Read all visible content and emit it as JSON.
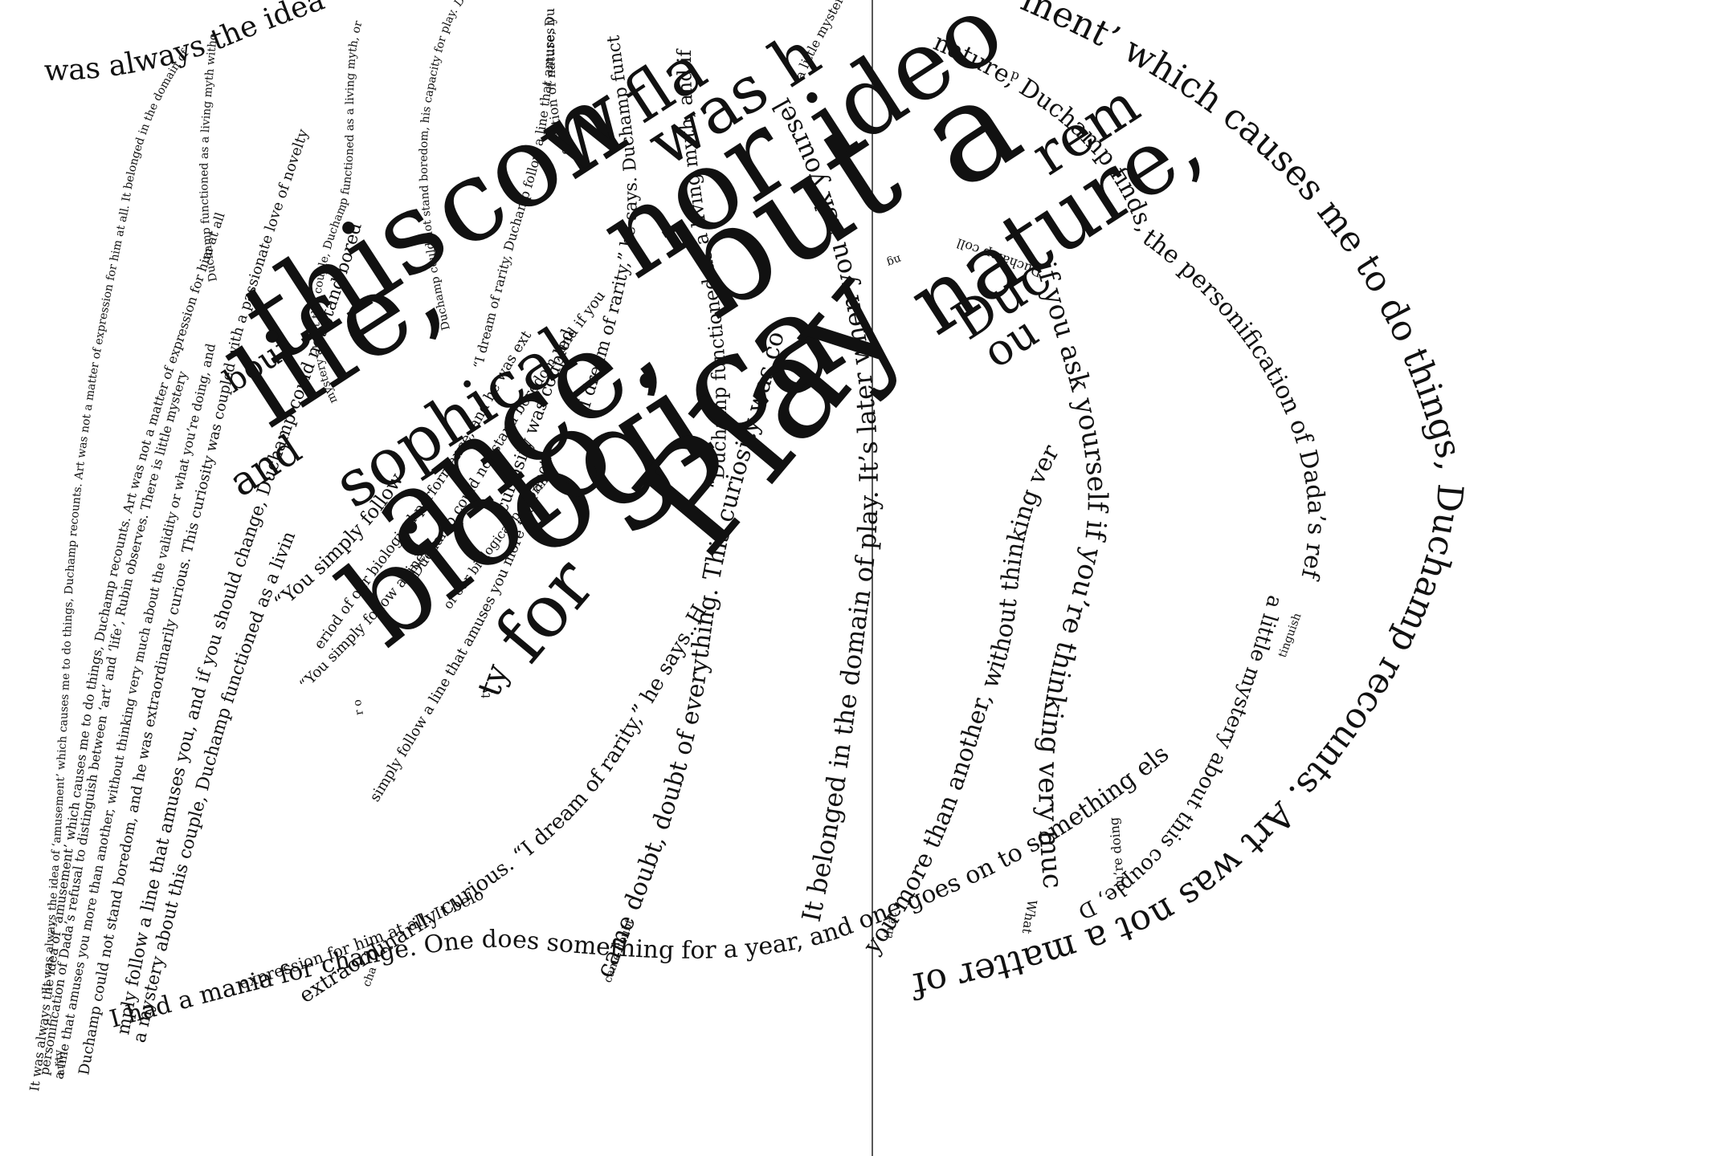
{
  "page": {
    "background": "#ffffff",
    "ink": "#111111"
  },
  "large_words": {
    "this": "this",
    "con": "con",
    "w": "w",
    "fla": "fla",
    "wash": "was h",
    "life": "life,",
    "nor": "nor",
    "ideo": "ideo",
    "but": "but",
    "a": "a",
    "sophical": "sophical",
    "ance": "ance,",
    "ogica": "ogica",
    "nature": "nature,",
    "rem": "rem",
    "biolo": "biolo",
    "for": "for",
    "play": "Play",
    "and": "and",
    "bout": "bout",
    "ty": "ty",
    "duc": "Duc",
    "ou": "ou"
  },
  "curves": {
    "c_right_outer": "ment’ which causes me to do things, Duchamp recounts. Art was not a matter of",
    "c_right_mid": "nature, Duchamp finds, the personification of Dada’s refusal to distinguish between ‘art’ and ‘life’, Rubin observes. “It w",
    "c_right_spine": "if you ask yourself if you’re thinking very much about the validity or what you’re doing",
    "c_right_tail": "a little mystery about this couple, Duchamp functioned as a living myth, the personification of",
    "c_bottom": "I had a mania for change. One does something for a year, and one goes on to something else. “Duchamp functioned as a living myth,",
    "c_bottom2": "expression for him at all. It belonged in the domain of play. Art was not a matter of expression for him at all.",
    "c_mid1": "came doubt, doubt of everything. This curiosity was coupled with a passionate love of novelty, dream of rarity",
    "c_mid2": "you more than another, without thinking very much about the validity of what you’re doing. It’s later when you ask yourself",
    "c_mid3": "It belonged in the domain of play. It’s later when you ask yourself if you’re right or wrong, and if you follow a",
    "c_mid4": "extraordinarily curious. “I dream of rarity,” he says. His Dada was neither a philosophical nor ideological performance",
    "c_left1": "It was always the idea of ‘amusement’ which causes me to do things, Duchamp recounts. Art was not a matter of expression for him at all",
    "c_left2": "personification of Dada’s refusal to distinguish between ‘art’ and ‘life’, Rubin observes. There is little mystery",
    "c_left3": "a line that amuses you more than another, without thinking very much about the validity or what you’re doing, and",
    "c_left4": "Duchamp could not stand boredom, and he was extraordinarily curious. This curiosity was coupled with a passionate love of novelty",
    "c_left5": "It was always the idea of ‘amusement’ which causes me to do things, Duchamp recounts. Art was not a matter of expression for him at all. It belonged in the domain of play. “You s",
    "c_left6": "mply follow a line that amuses you, and if you should change, Duchamp could not stand boredom, and he was extraordinarily curious. “I dream",
    "c_left7": "a mystery about this couple, Duchamp functioned as a living myth, the personification of Dada’s refusal",
    "c_top1": "was always the idea of amusement which causes me to do things",
    "c_topstrand1": "Duchamp functioned as a living myth without thinking very much about the validity of",
    "c_topstrand2": "mystery about this couple, Duchamp functioned as a living myth, or what you’re doing. Duchamp",
    "c_topstrand3": "Duchamp could not stand boredom, his capacity for play. Duc",
    "c_topstrand4": "“I dream of rarity, Duchamp follow a line that amuses you",
    "c_topstrand5": "“I dream of rarity,” he says. Duchamp functioned as a living myth, and if you",
    "c_topstrand6": "“Duchamp functioned as a living myth, and if you should change",
    "c_topstrand7": "question of nature, Duchamp, or his capacity for play",
    "c_topstrand8": "a little mystery about this couple, amuses you more than another",
    "c_center1": "Duchamp could not stand boredom, and if you should change the personification of Dada’s",
    "c_center2": "eriod of our biological performance, and he was extraordinarily curious.",
    "c_center3": "simply follow a line that amuses you more than another, and if you",
    "c_center4": "“You simply follow a line that amuses you, which causes",
    "c_center5": "curiosity was coupled with a passionate love of novelty.",
    "c_center6": "“You simply follow a line, and if you’re right or wrong, observes",
    "c_center7": "of our biological performance, “You simply follow a line",
    "c_tiny1": "came doubt",
    "c_tiny2": "th at",
    "c_tiny3": "What",
    "c_tiny4": "ou’re doing",
    "c_tiny5": "Duchamp coll",
    "c_tiny6": "tinguish",
    "c_tiny7": "ty",
    "c_tiny8": "r o",
    "c_tiny9": "d",
    "c_tiny10": "cha",
    "c_tiny11": "arity",
    "c_tiny12": "ng"
  }
}
